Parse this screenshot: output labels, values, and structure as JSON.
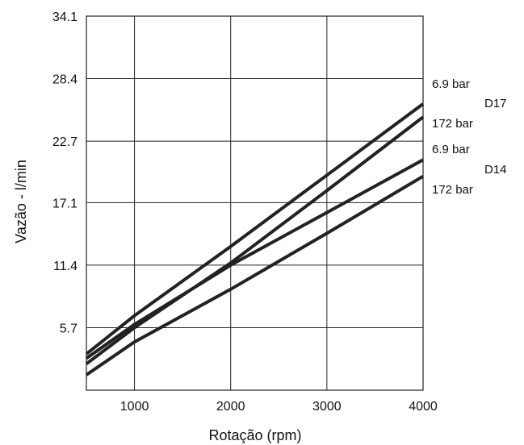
{
  "chart_data": {
    "type": "line",
    "title": "",
    "xlabel": "Rotação (rpm)",
    "ylabel": "Vazão - l/min",
    "xlim": [
      500,
      4000
    ],
    "ylim": [
      0,
      34.1
    ],
    "x_ticks": [
      1000,
      2000,
      3000,
      4000
    ],
    "x_tick_labels": [
      "1000",
      "2000",
      "3000",
      "4000"
    ],
    "y_ticks": [
      5.7,
      11.4,
      17.1,
      22.7,
      28.4,
      34.1
    ],
    "y_tick_labels": [
      "5.7",
      "11.4",
      "17.1",
      "22.7",
      "28.4",
      "34.1"
    ],
    "grid": true,
    "line_color": "#222222",
    "series": [
      {
        "x": [
          500,
          1000,
          2000,
          3000,
          4000
        ],
        "y": [
          3.3,
          6.8,
          13.1,
          19.6,
          26.1
        ]
      },
      {
        "x": [
          500,
          1000,
          2000,
          3000,
          4000
        ],
        "y": [
          2.4,
          5.7,
          11.6,
          18.2,
          24.9
        ]
      },
      {
        "x": [
          500,
          1000,
          2000,
          3000,
          4000
        ],
        "y": [
          2.9,
          6.0,
          11.4,
          16.2,
          21.0
        ]
      },
      {
        "x": [
          500,
          1000,
          2000,
          3000,
          4000
        ],
        "y": [
          1.4,
          4.4,
          9.2,
          14.3,
          19.5
        ]
      }
    ],
    "annotations": [
      {
        "text": "6.9 bar"
      },
      {
        "text": "D17"
      },
      {
        "text": "172 bar"
      },
      {
        "text": "6.9 bar"
      },
      {
        "text": "D14"
      },
      {
        "text": "172 bar"
      }
    ]
  }
}
